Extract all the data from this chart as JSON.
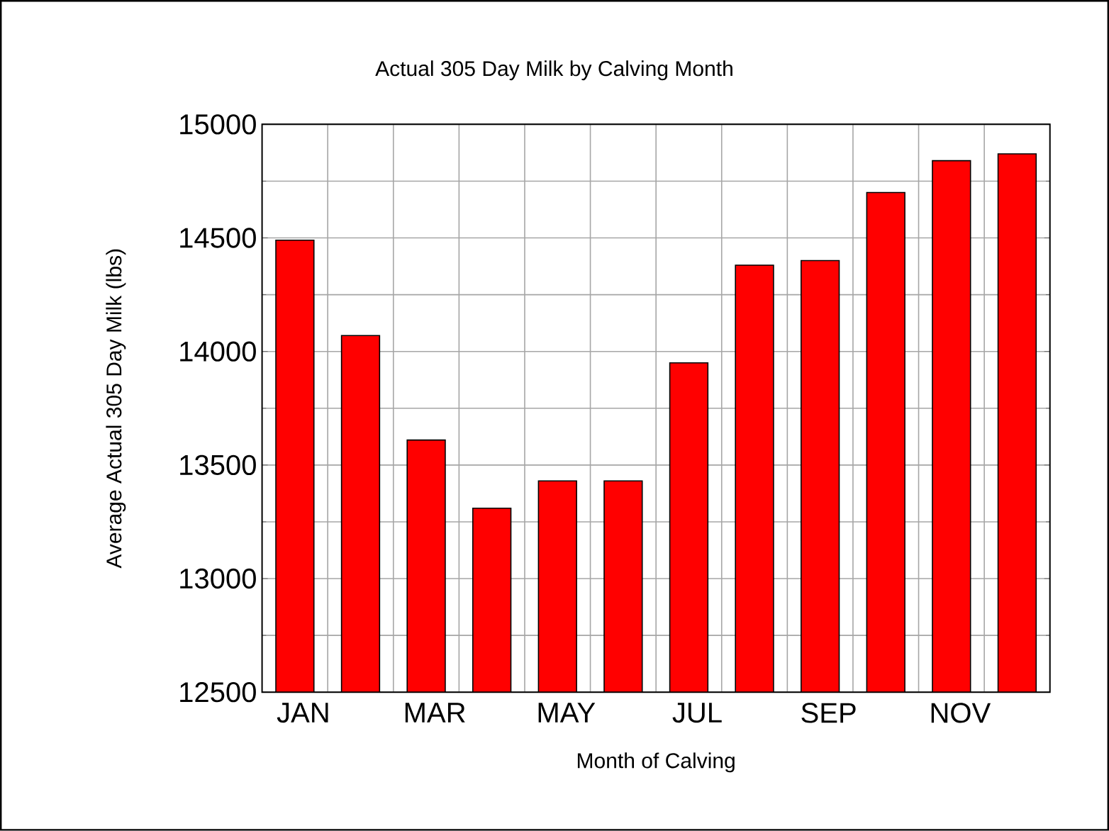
{
  "chart_data": {
    "type": "bar",
    "title": "Actual 305 Day Milk by Calving Month",
    "xlabel": "Month of Calving",
    "ylabel": "Average Actual 305 Day Milk (lbs)",
    "categories": [
      "JAN",
      null,
      "MAR",
      null,
      "MAY",
      null,
      "JUL",
      null,
      "SEP",
      null,
      "NOV",
      null
    ],
    "values": [
      14490,
      14070,
      13610,
      13310,
      13430,
      13430,
      13950,
      14380,
      14400,
      14700,
      14840,
      14870
    ],
    "color": "#ff0000",
    "ylim": [
      12500,
      15000
    ],
    "yticks": [
      12500,
      13000,
      13500,
      14000,
      14500,
      15000
    ],
    "grid": true
  }
}
